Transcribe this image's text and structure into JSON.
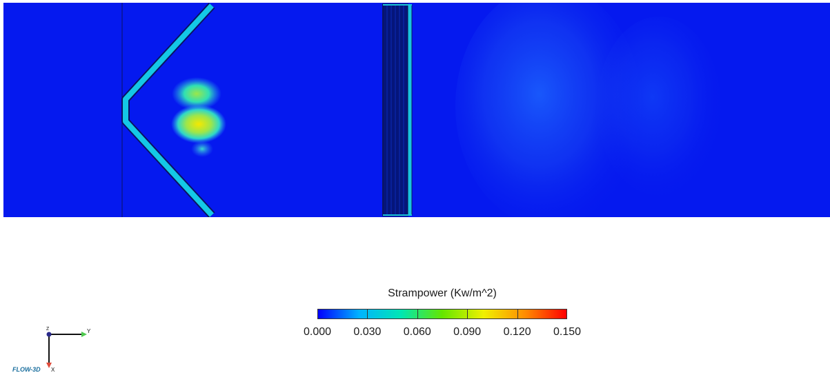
{
  "legend": {
    "title": "Strampower (Kw/m^2)",
    "ticks": [
      "0.000",
      "0.030",
      "0.060",
      "0.090",
      "0.120",
      "0.150"
    ],
    "min": 0.0,
    "max": 0.15,
    "colormap": [
      "#0000ff",
      "#00b4ff",
      "#00e6b4",
      "#64e600",
      "#f0f000",
      "#ff8c00",
      "#ff0000"
    ]
  },
  "axes": {
    "y_label": "Y",
    "x_label": "X",
    "z_label": "Z"
  },
  "brand": {
    "logo_text": "FLOW-3D"
  },
  "colors": {
    "field_background": "#0519ef",
    "wall_cyan": "#14c8e6",
    "hotspot_yellow": "#f0e600"
  }
}
